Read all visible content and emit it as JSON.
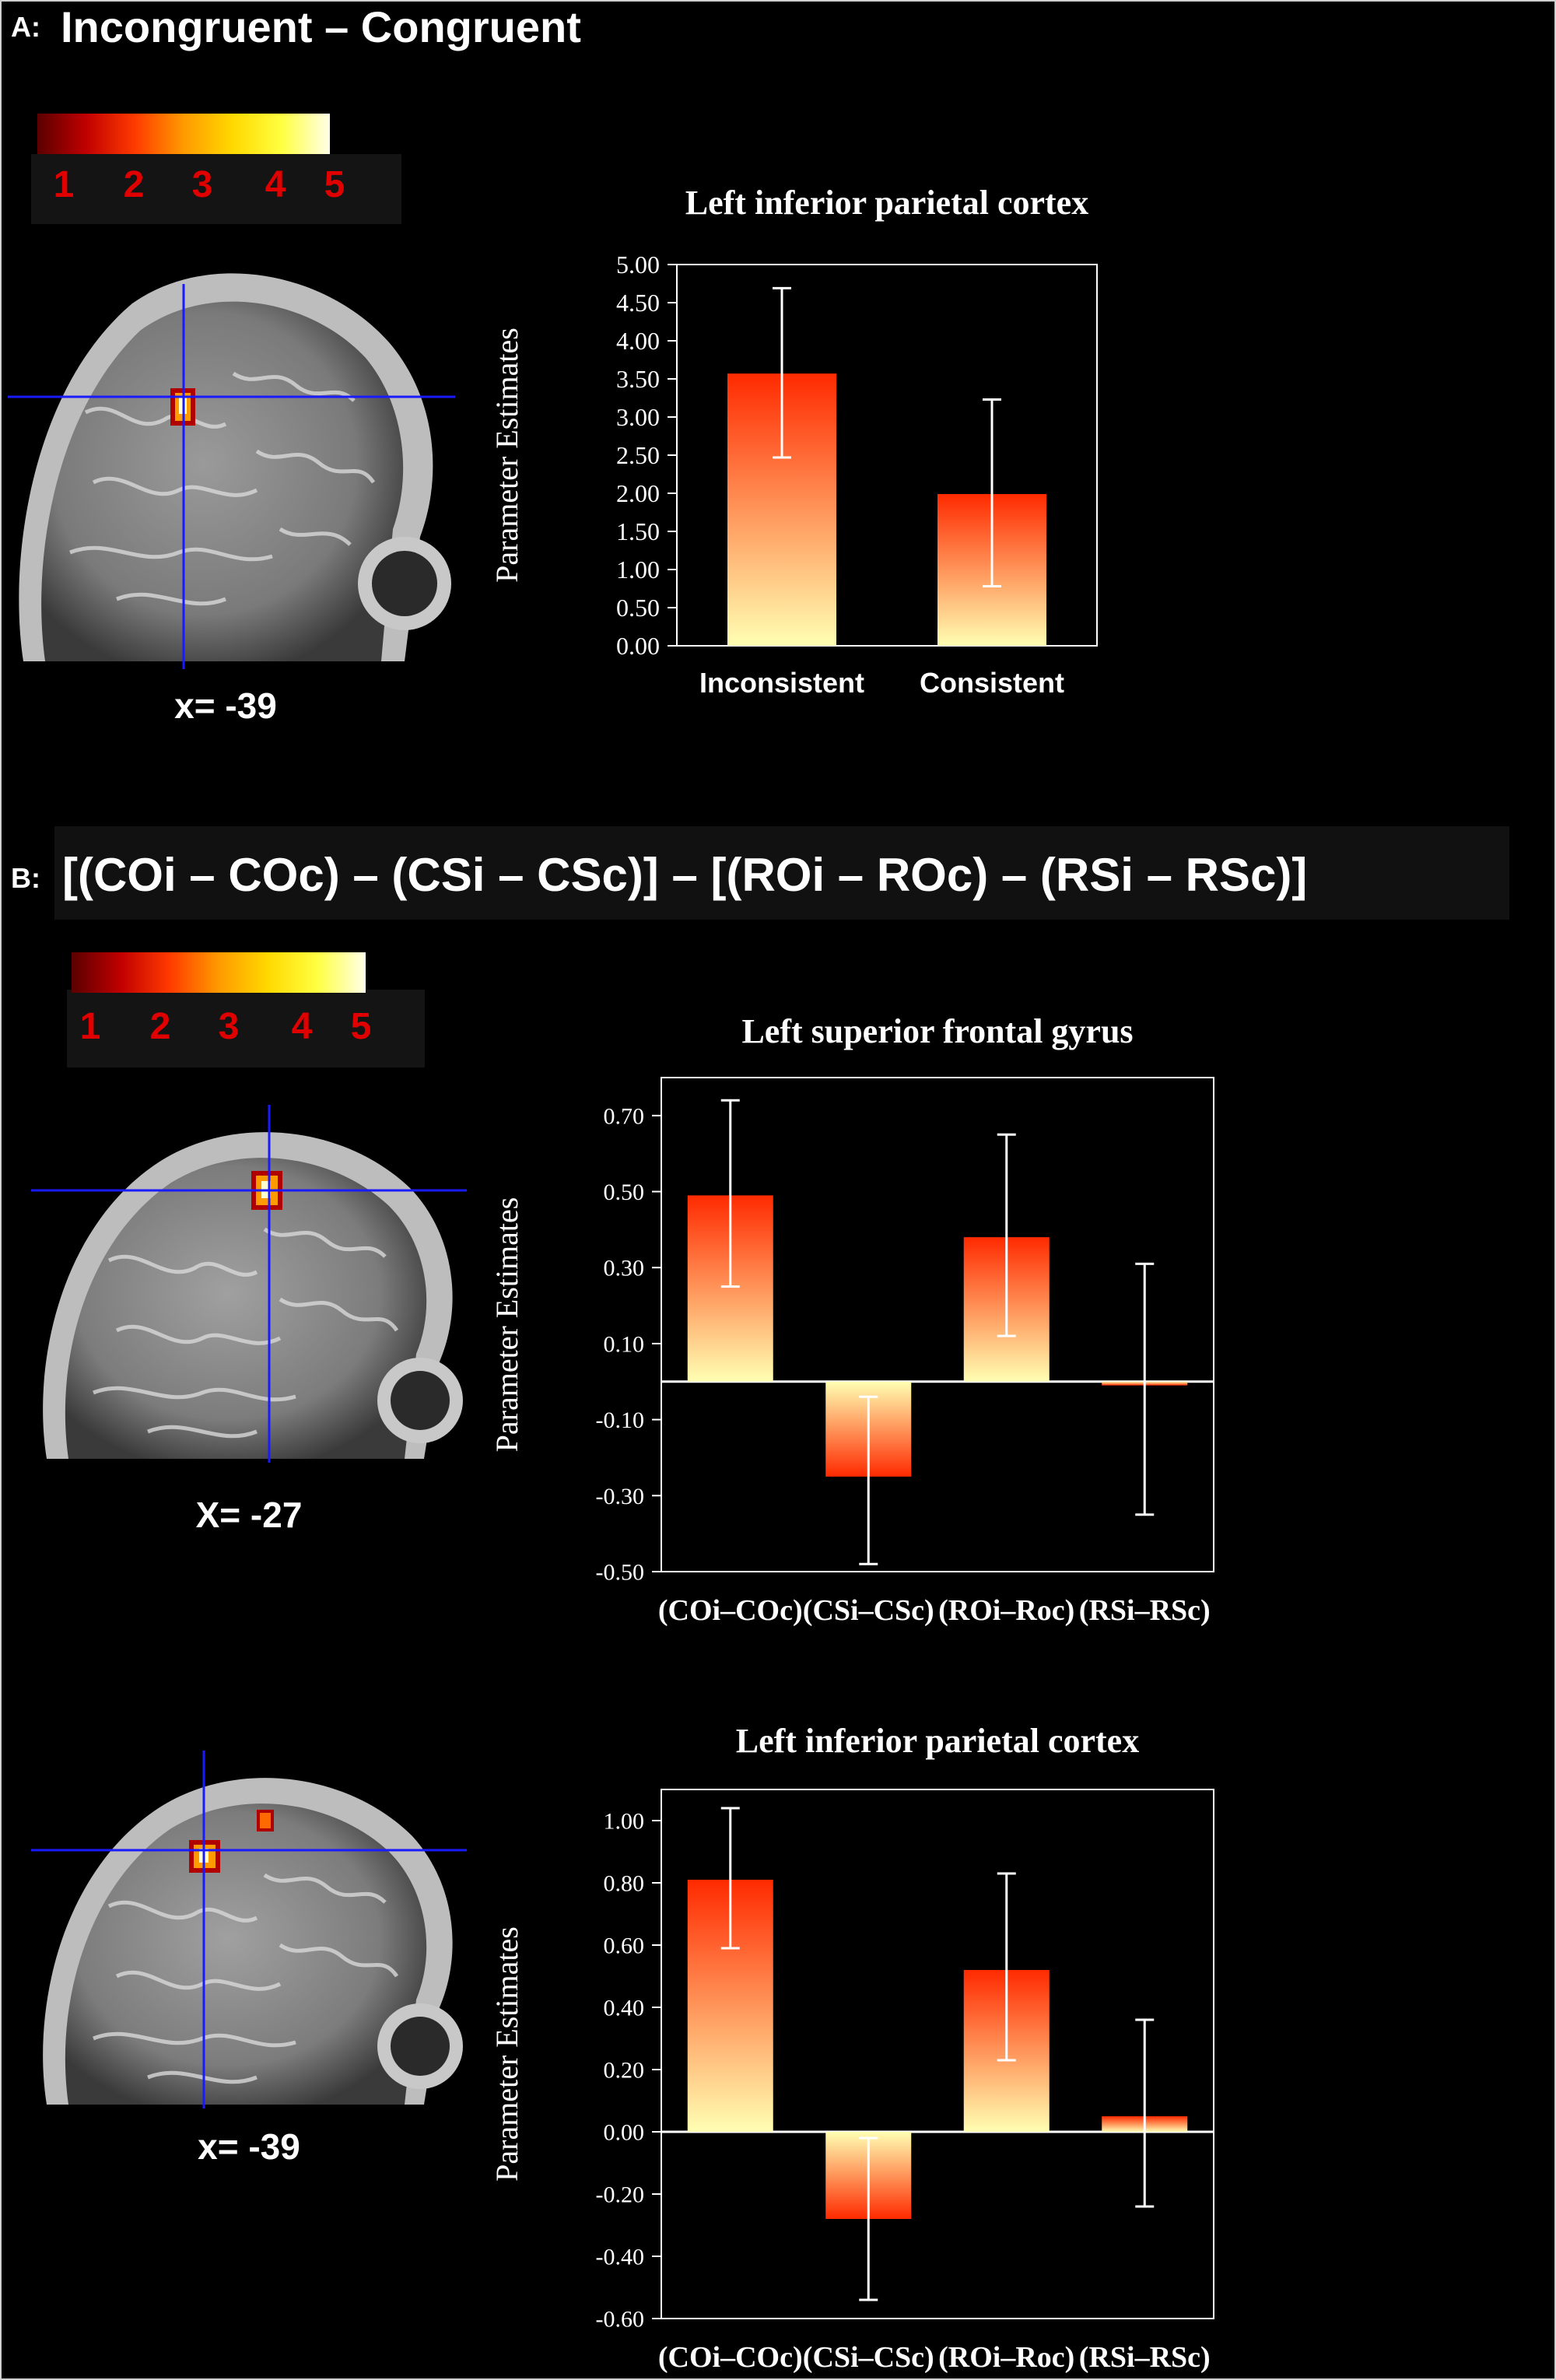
{
  "colors": {
    "background": "#000000",
    "bar_top": "#ff2a00",
    "bar_bottom": "#ffffb3",
    "scale_numbers": "#e00000",
    "crosshair": "#1a1aff"
  },
  "panel_a": {
    "letter": "A:",
    "title": "Incongruent – Congruent",
    "scale_numbers": [
      "1",
      "2",
      "3",
      "4",
      "5"
    ],
    "coordinate": "x= -39"
  },
  "panel_b": {
    "letter": "B:",
    "title": "[(COi – COc) – (CSi – CSc)] – [(ROi – ROc) – (RSi – RSc)]",
    "scale_numbers": [
      "1",
      "2",
      "3",
      "4",
      "5"
    ],
    "coordinate_1": "X= -27",
    "coordinate_2": "x= -39"
  },
  "chart_data": [
    {
      "type": "bar",
      "title": "Left inferior parietal cortex",
      "ylabel": "Parameter Estimates",
      "xlabel": "",
      "categories": [
        "Inconsistent",
        "Consistent"
      ],
      "values": [
        3.57,
        1.99
      ],
      "error_low": [
        2.47,
        0.78
      ],
      "error_high": [
        4.69,
        3.23
      ],
      "ylim": [
        0,
        5.0
      ],
      "yticks": [
        0.0,
        0.5,
        1.0,
        1.5,
        2.0,
        2.5,
        3.0,
        3.5,
        4.0,
        4.5,
        5.0
      ],
      "ytick_labels": [
        "0.00",
        "0.50",
        "1.00",
        "1.50",
        "2.00",
        "2.50",
        "3.00",
        "3.50",
        "4.00",
        "4.50",
        "5.00"
      ],
      "grid": false,
      "legend": "none"
    },
    {
      "type": "bar",
      "title": "Left superior frontal gyrus",
      "ylabel": "Parameter Estimates",
      "xlabel": "",
      "categories": [
        "(COi–COc)",
        "(CSi–CSc)",
        "(ROi–Roc)",
        "(RSi–RSc)"
      ],
      "values": [
        0.49,
        -0.25,
        0.38,
        -0.01
      ],
      "error_low": [
        0.25,
        -0.48,
        0.12,
        -0.35
      ],
      "error_high": [
        0.74,
        -0.04,
        0.65,
        0.31
      ],
      "ylim": [
        -0.5,
        0.8
      ],
      "yticks": [
        0.7,
        0.5,
        0.3,
        0.1,
        -0.1,
        -0.3,
        -0.5
      ],
      "ytick_labels": [
        "0.70",
        "0.50",
        "0.30",
        "0.10",
        "-0.10",
        "-0.30",
        "-0.50"
      ],
      "grid": false,
      "legend": "none"
    },
    {
      "type": "bar",
      "title": "Left inferior parietal cortex",
      "ylabel": "Parameter Estimates",
      "xlabel": "",
      "categories": [
        "(COi–COc)",
        "(CSi–CSc)",
        "(ROi–Roc)",
        "(RSi–RSc)"
      ],
      "values": [
        0.81,
        -0.28,
        0.52,
        0.05
      ],
      "error_low": [
        0.59,
        -0.54,
        0.23,
        -0.24
      ],
      "error_high": [
        1.04,
        -0.02,
        0.83,
        0.36
      ],
      "ylim": [
        -0.6,
        1.1
      ],
      "yticks": [
        1.0,
        0.8,
        0.6,
        0.4,
        0.2,
        0.0,
        -0.2,
        -0.4,
        -0.6
      ],
      "ytick_labels": [
        "1.00",
        "0.80",
        "0.60",
        "0.40",
        "0.20",
        "0.00",
        "-0.20",
        "-0.40",
        "-0.60"
      ],
      "grid": false,
      "legend": "none"
    }
  ]
}
